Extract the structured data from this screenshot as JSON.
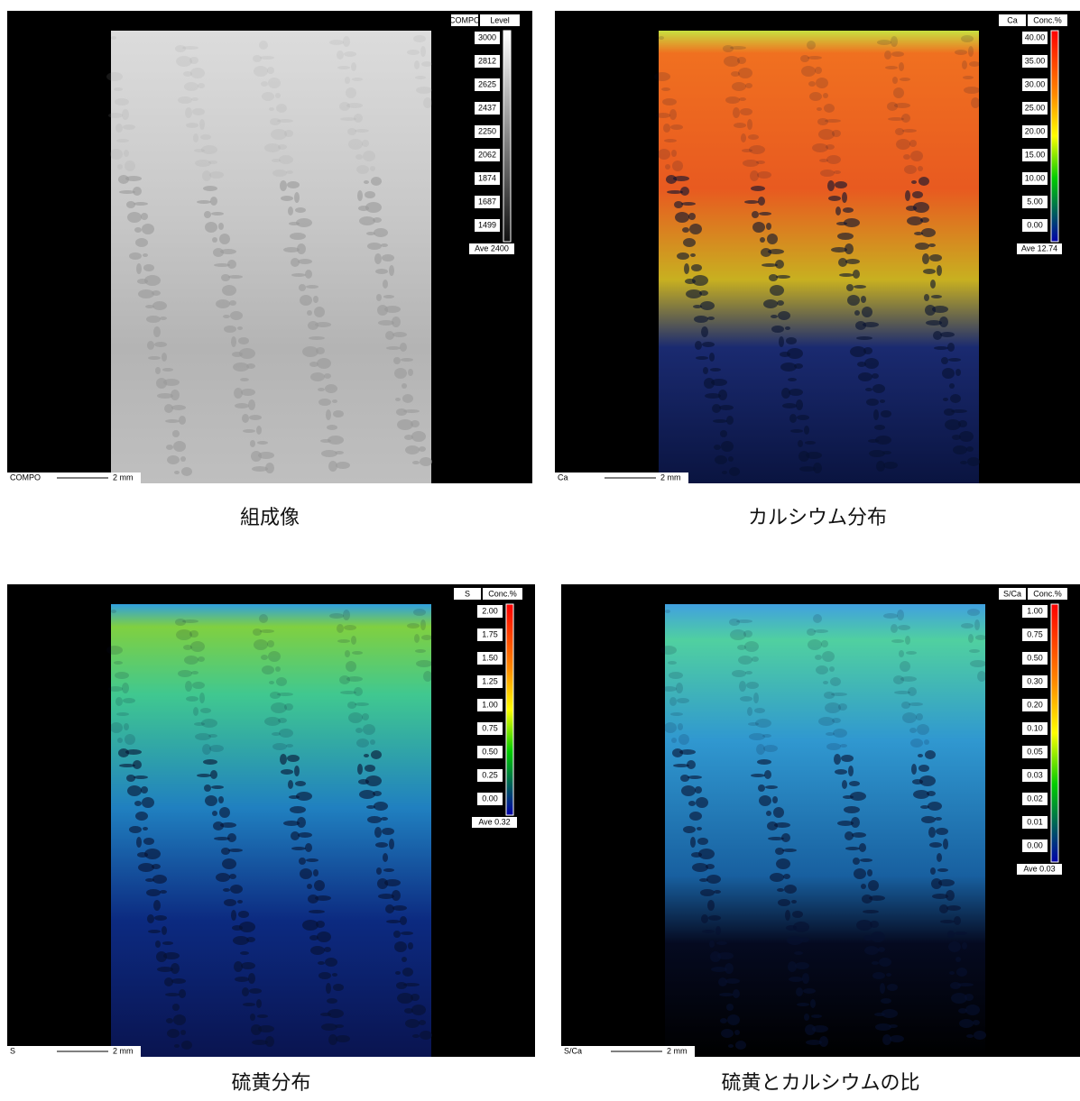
{
  "panels": [
    {
      "caption": "組成像",
      "element": "COMPO",
      "unit": "Level",
      "scale_labels": [
        "3000",
        "2812",
        "2625",
        "2437",
        "2250",
        "2062",
        "1874",
        "1687",
        "1499"
      ],
      "average": "Ave 2400",
      "bar_element": "COMPO",
      "bar_label": "2 mm"
    },
    {
      "caption": "カルシウム分布",
      "element": "Ca",
      "unit": "Conc.%",
      "scale_labels": [
        "40.00",
        "35.00",
        "30.00",
        "25.00",
        "20.00",
        "15.00",
        "10.00",
        "5.00",
        "0.00"
      ],
      "average": "Ave 12.74",
      "bar_element": "Ca",
      "bar_label": "2 mm"
    },
    {
      "caption": "硫黄分布",
      "element": "S",
      "unit": "Conc.%",
      "scale_labels": [
        "2.00",
        "1.75",
        "1.50",
        "1.25",
        "1.00",
        "0.75",
        "0.50",
        "0.25",
        "0.00"
      ],
      "average": "Ave 0.32",
      "bar_element": "S",
      "bar_label": "2 mm"
    },
    {
      "caption": "硫黄とカルシウムの比",
      "element": "S/Ca",
      "unit": "Conc.%",
      "scale_labels": [
        "1.00",
        "0.75",
        "0.50",
        "0.30",
        "0.20",
        "0.10",
        "0.05",
        "0.03",
        "0.02",
        "0.01",
        "0.00"
      ],
      "average": "Ave 0.03",
      "bar_element": "S/Ca",
      "bar_label": "2 mm"
    }
  ]
}
